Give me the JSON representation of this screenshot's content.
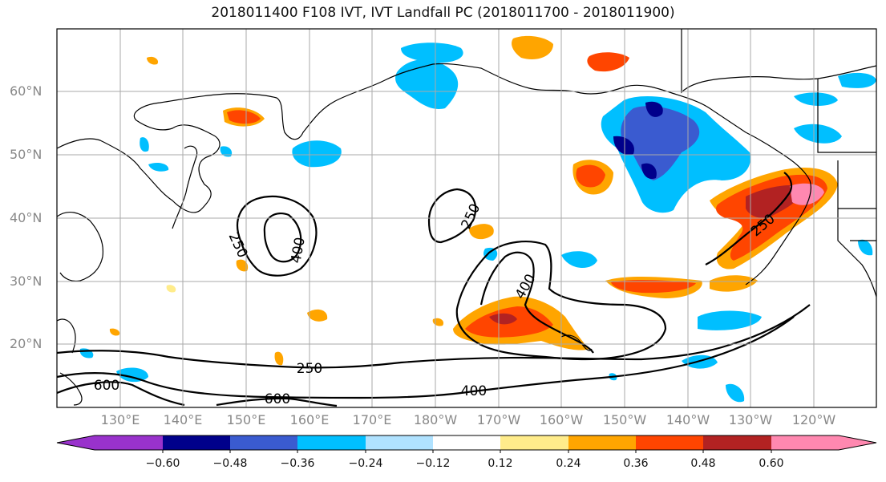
{
  "title": "2018011400 F108 IVT, IVT Landfall PC (2018011700 - 2018011900)",
  "lat_labels": [
    "60°N",
    "50°N",
    "40°N",
    "30°N",
    "20°N"
  ],
  "lon_labels": [
    "130°E",
    "140°E",
    "150°E",
    "160°E",
    "170°E",
    "180°W",
    "170°W",
    "160°W",
    "150°W",
    "140°W",
    "130°W",
    "120°W"
  ],
  "contour_labels": [
    "250",
    "400",
    "250",
    "250",
    "400",
    "250",
    "400",
    "600",
    "600"
  ],
  "colorbar": {
    "tick_labels": [
      "−0.60",
      "−0.48",
      "−0.36",
      "−0.24",
      "−0.12",
      "0.12",
      "0.24",
      "0.36",
      "0.48",
      "0.60"
    ],
    "colors": [
      "#9932cc",
      "#00008b",
      "#3a5bd0",
      "#00bfff",
      "#b0e2ff",
      "#ffffff",
      "#ffec8b",
      "#ffa500",
      "#ff4500",
      "#b22222",
      "#ff88b0",
      "#ff88b0"
    ]
  },
  "styles": {
    "grid_color": "#aaaaaa",
    "coast_color": "#000000",
    "contour_color": "#000000"
  }
}
